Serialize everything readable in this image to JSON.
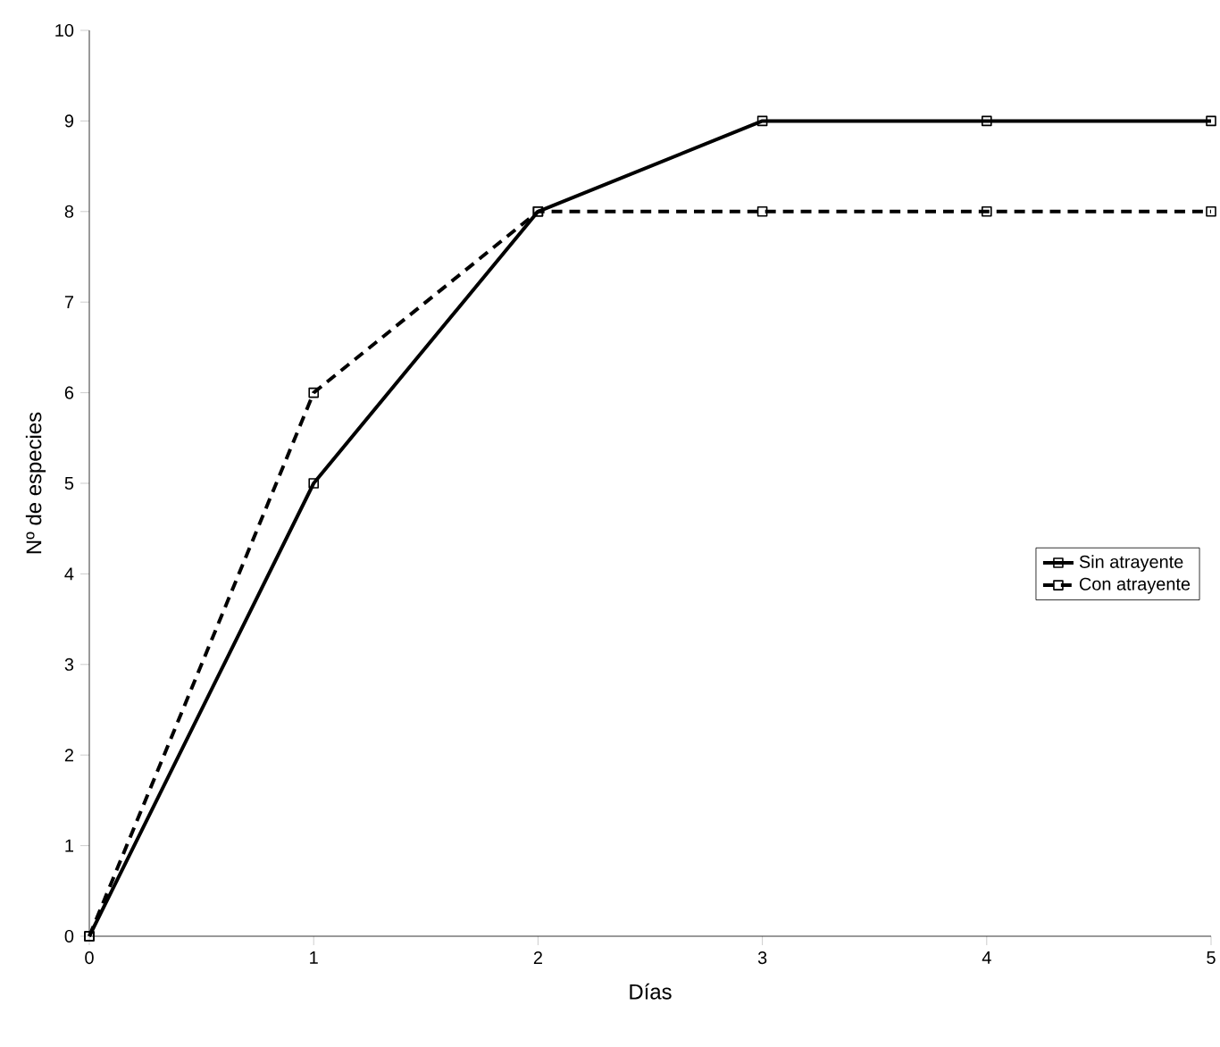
{
  "chart_data": {
    "type": "line",
    "xlabel": "Días",
    "ylabel": "Nº de especies",
    "x": [
      0,
      1,
      2,
      3,
      4,
      5
    ],
    "series": [
      {
        "name": "Sin atrayente",
        "color": "#000000",
        "values": [
          0,
          5,
          8,
          9,
          9,
          9
        ],
        "line_style": "solid"
      },
      {
        "name": "Con atrayente",
        "color": "#000000",
        "values": [
          0,
          6,
          8,
          8,
          8,
          8
        ],
        "line_style": "dashed"
      }
    ],
    "xlim": [
      0,
      5
    ],
    "xticks": [
      0,
      1,
      2,
      3,
      4,
      5
    ],
    "ylim": [
      0,
      10
    ],
    "yticks": [
      0,
      1,
      2,
      3,
      4,
      5,
      6,
      7,
      8,
      9,
      10
    ],
    "marker": "square",
    "grid": false,
    "legend": "right"
  }
}
